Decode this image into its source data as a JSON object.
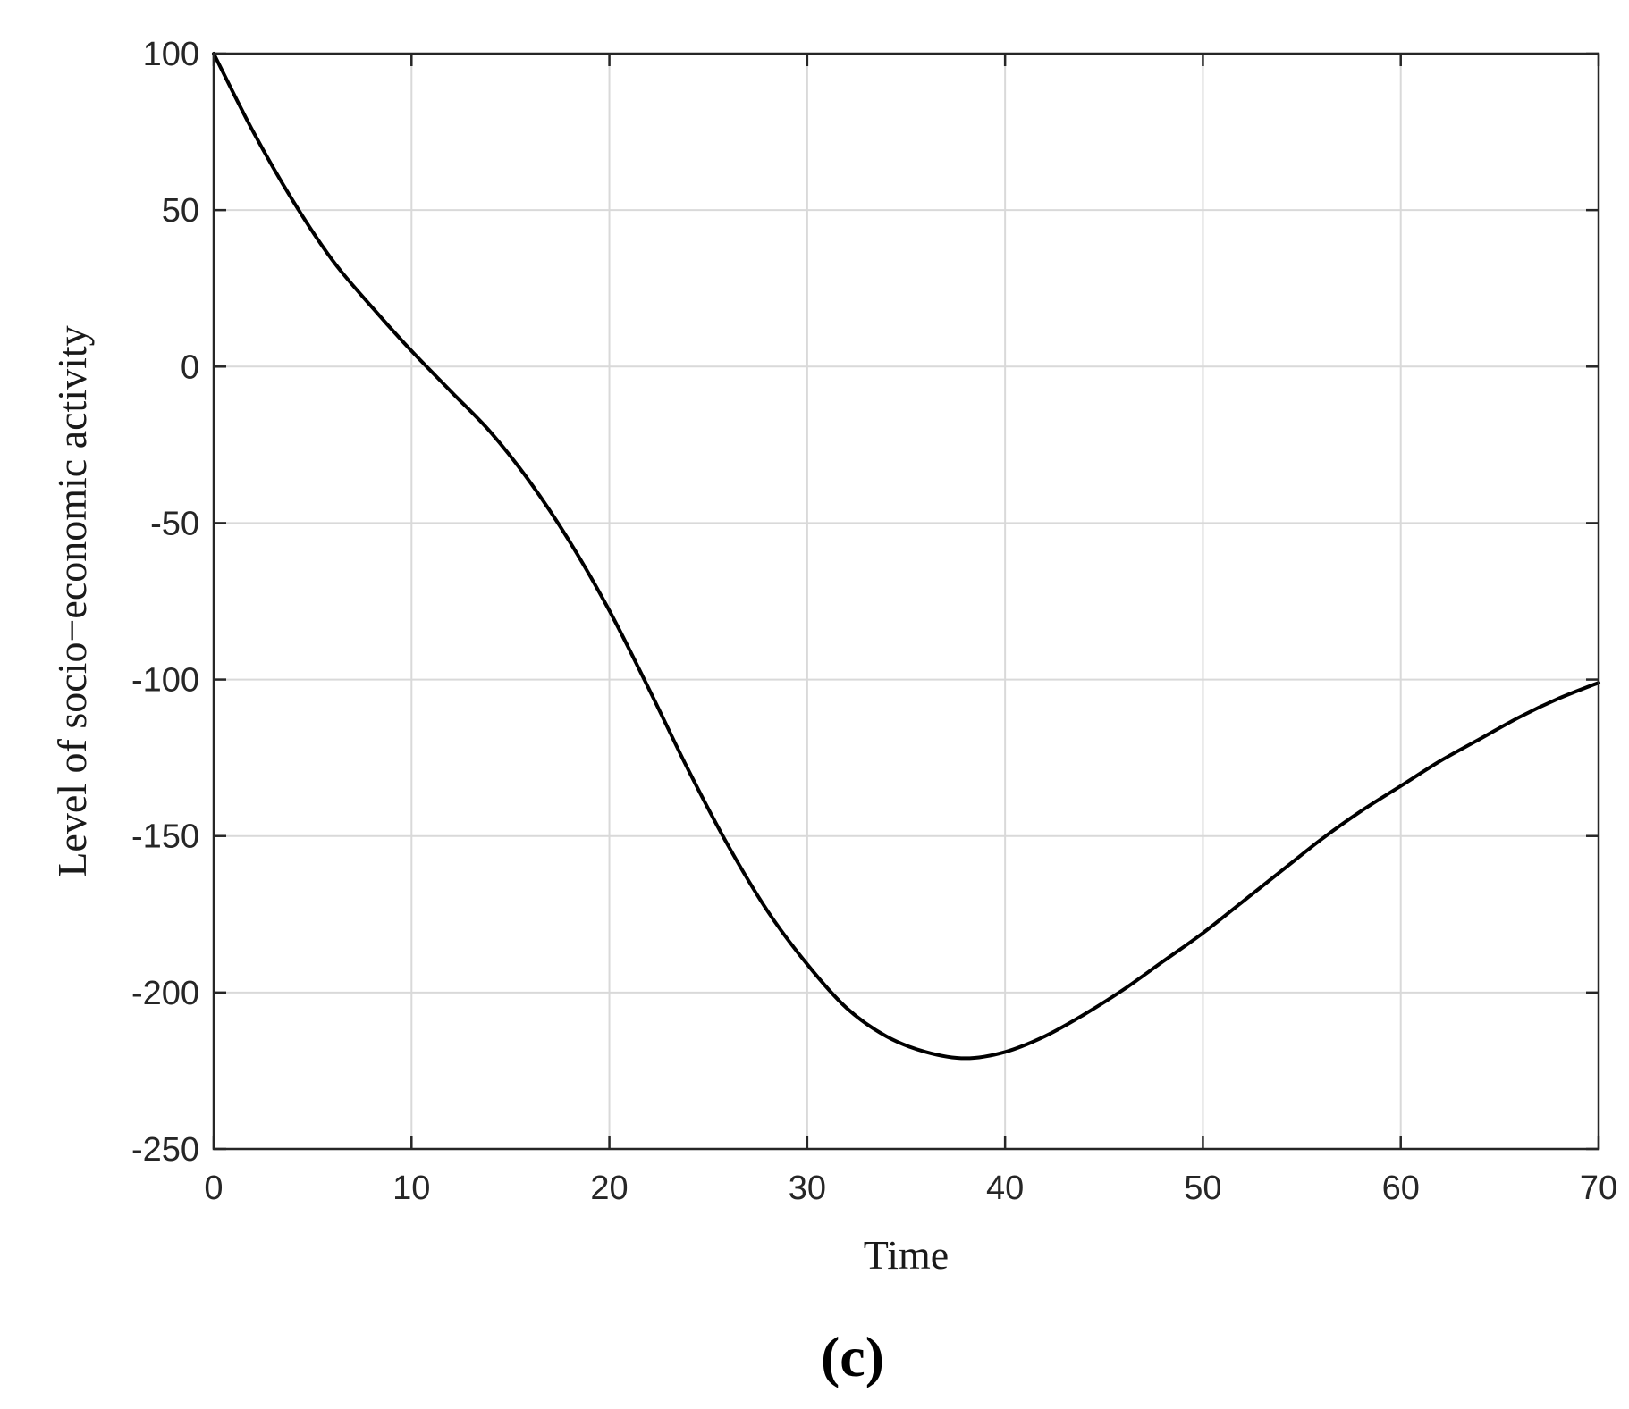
{
  "chart_data": {
    "type": "line",
    "title": "",
    "xlabel": "Time",
    "ylabel": "Level of socio−economic activity",
    "panel_label": "(c)",
    "xlim": [
      0,
      70
    ],
    "ylim": [
      -250,
      100
    ],
    "x_ticks": [
      0,
      10,
      20,
      30,
      40,
      50,
      60,
      70
    ],
    "y_ticks": [
      100,
      50,
      0,
      -50,
      -100,
      -150,
      -200,
      -250
    ],
    "x_tick_labels": [
      "0",
      "10",
      "20",
      "30",
      "40",
      "50",
      "60",
      "70"
    ],
    "y_tick_labels": [
      "100",
      "50",
      "0",
      "-50",
      "-100",
      "-150",
      "-200",
      "-250"
    ],
    "grid": true,
    "legend": "none",
    "series": [
      {
        "color": "#000000",
        "x": [
          0,
          2,
          4,
          6,
          8,
          10,
          12,
          14,
          16,
          18,
          20,
          22,
          24,
          26,
          28,
          30,
          32,
          34,
          36,
          38,
          40,
          42,
          44,
          46,
          48,
          50,
          52,
          54,
          56,
          58,
          60,
          62,
          64,
          66,
          68,
          70
        ],
        "values": [
          100,
          75,
          53,
          34,
          19,
          5,
          -8,
          -21,
          -37,
          -56,
          -78,
          -103,
          -129,
          -153,
          -174,
          -191,
          -205,
          -214,
          -219,
          -221,
          -219,
          -214,
          -207,
          -199,
          -190,
          -181,
          -171,
          -161,
          -151,
          -142,
          -134,
          -126,
          -119,
          -112,
          -106,
          -101
        ]
      }
    ]
  }
}
